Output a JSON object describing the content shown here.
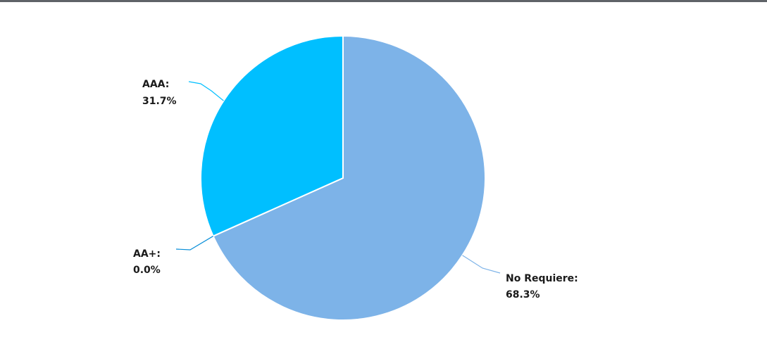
{
  "chart_data": {
    "type": "pie",
    "slices": [
      {
        "label": "No Requiere",
        "value": 68.3,
        "display": "68.3%",
        "color": "#7db3e8"
      },
      {
        "label": "AA+",
        "value": 0.0,
        "display": "0.0%",
        "color": "#0a8fd9"
      },
      {
        "label": "AAA",
        "value": 31.7,
        "display": "31.7%",
        "color": "#00bfff"
      }
    ],
    "start_angle_deg": 0,
    "direction": "clockwise",
    "legend": "none",
    "label_style": "label-colon-percent-with-leader-lines"
  }
}
